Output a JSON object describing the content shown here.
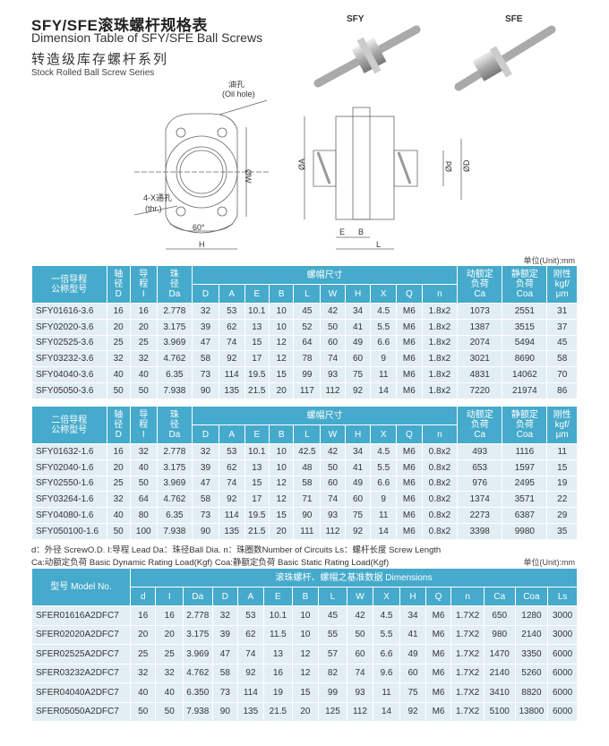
{
  "title_cn": "SFY/SFE滚珠螺杆规格表",
  "title_en": "Dimension Table of SFY/SFE Ball Screws",
  "subtitle_cn": "转造级库存螺杆系列",
  "subtitle_en": "Stock Rolled Ball Screw Series",
  "products": {
    "sfy": "SFY",
    "sfe": "SFE"
  },
  "drawing": {
    "oil_hole_cn": "油孔",
    "oil_hole_en": "(Oil hole)",
    "thr_cn": "4-X通孔",
    "thr_en": "(thr.)",
    "angle": "60°",
    "H": "H",
    "W": "ØW",
    "A": "ØA",
    "d": "Ød",
    "D": "ØD",
    "E": "E",
    "B": "B",
    "L": "L"
  },
  "unit": "单位(Unit):mm",
  "table1": {
    "group": "螺帽尺寸",
    "head_model": "一倍导程\n公称型号",
    "head_shaft": "轴\n径\nD",
    "head_lead": "导\n程\nI",
    "head_ball": "珠\n径\nDa",
    "sub": [
      "D",
      "A",
      "E",
      "B",
      "L",
      "W",
      "H",
      "X",
      "Q",
      "n"
    ],
    "head_ca": "动额定\n负荷\nCa",
    "head_coa": "静额定\n负荷\nCoa",
    "head_rig": "刚性\nkgf/\nμm",
    "rows": [
      [
        "SFY01616-3.6",
        "16",
        "16",
        "2.778",
        "32",
        "53",
        "10.1",
        "10",
        "45",
        "42",
        "34",
        "4.5",
        "M6",
        "1.8x2",
        "1073",
        "2551",
        "31"
      ],
      [
        "SFY02020-3.6",
        "20",
        "20",
        "3.175",
        "39",
        "62",
        "13",
        "10",
        "52",
        "50",
        "41",
        "5.5",
        "M6",
        "1.8x2",
        "1387",
        "3515",
        "37"
      ],
      [
        "SFY02525-3.6",
        "25",
        "25",
        "3.969",
        "47",
        "74",
        "15",
        "12",
        "64",
        "60",
        "49",
        "6.6",
        "M6",
        "1.8x2",
        "2074",
        "5494",
        "45"
      ],
      [
        "SFY03232-3.6",
        "32",
        "32",
        "4.762",
        "58",
        "92",
        "17",
        "12",
        "78",
        "74",
        "60",
        "9",
        "M6",
        "1.8x2",
        "3021",
        "8690",
        "58"
      ],
      [
        "SFY04040-3.6",
        "40",
        "40",
        "6.35",
        "73",
        "114",
        "19.5",
        "15",
        "99",
        "93",
        "75",
        "11",
        "M6",
        "1.8x2",
        "4831",
        "14062",
        "70"
      ],
      [
        "SFY05050-3.6",
        "50",
        "50",
        "7.938",
        "90",
        "135",
        "21.5",
        "20",
        "117",
        "112",
        "92",
        "14",
        "M6",
        "1.8x2",
        "7220",
        "21974",
        "86"
      ]
    ]
  },
  "table2": {
    "group": "螺帽尺寸",
    "head_model": "二倍导程\n公称型号",
    "head_shaft": "轴\n径\nD",
    "head_lead": "导\n程\nI",
    "head_ball": "珠\n径\nDa",
    "sub": [
      "D",
      "A",
      "E",
      "B",
      "L",
      "W",
      "H",
      "X",
      "Q",
      "n"
    ],
    "head_ca": "动额定\n负荷\nCa",
    "head_coa": "静额定\n负荷\nCoa",
    "head_rig": "刚性\nkgf/\nμm",
    "rows": [
      [
        "SFY01632-1.6",
        "16",
        "32",
        "2.778",
        "32",
        "53",
        "10.1",
        "10",
        "42.5",
        "42",
        "34",
        "4.5",
        "M6",
        "0.8x2",
        "493",
        "1116",
        "11"
      ],
      [
        "SFY02040-1.6",
        "20",
        "40",
        "3.175",
        "39",
        "62",
        "13",
        "10",
        "48",
        "50",
        "41",
        "5.5",
        "M6",
        "0.8x2",
        "653",
        "1597",
        "15"
      ],
      [
        "SFY02550-1.6",
        "25",
        "50",
        "3.969",
        "47",
        "74",
        "15",
        "12",
        "58",
        "60",
        "49",
        "6.6",
        "M6",
        "0.8x2",
        "976",
        "2495",
        "19"
      ],
      [
        "SFY03264-1.6",
        "32",
        "64",
        "4.762",
        "58",
        "92",
        "17",
        "12",
        "71",
        "74",
        "60",
        "9",
        "M6",
        "0.8x2",
        "1374",
        "3571",
        "22"
      ],
      [
        "SFY04080-1.6",
        "40",
        "80",
        "6.35",
        "73",
        "114",
        "19.5",
        "15",
        "90",
        "93",
        "75",
        "11",
        "M6",
        "0.8x2",
        "2273",
        "6387",
        "29"
      ],
      [
        "SFY050100-1.6",
        "50",
        "100",
        "7.938",
        "90",
        "135",
        "21.5",
        "20",
        "111",
        "112",
        "92",
        "14",
        "M6",
        "0.8x2",
        "3398",
        "9980",
        "35"
      ]
    ]
  },
  "notes": {
    "line1": "d：外径 ScrewO.D.  I:导程  Lead  Da：珠径Ball Dia.    n：珠圈数Number of Circuits   Ls：螺杆长度 Screw Length",
    "line2": "Ca:动额定负荷  Basic Dynamic Rating Load(Kgf)   Coa:静额定负荷  Basic Static Rating Load(Kgf)",
    "unit": "单位(Unit):mm"
  },
  "table3": {
    "head_model": "型号 Model No.",
    "group": "滚珠螺杆、螺帽之基准数据 Dimensions",
    "sub": [
      "d",
      "I",
      "Da",
      "D",
      "A",
      "E",
      "B",
      "L",
      "W",
      "X",
      "H",
      "Q",
      "n",
      "Ca",
      "Coa",
      "Ls"
    ],
    "rows": [
      [
        "SFER01616A2DFC7",
        "16",
        "16",
        "2.778",
        "32",
        "53",
        "10.1",
        "10",
        "45",
        "42",
        "4.5",
        "34",
        "M6",
        "1.7X2",
        "650",
        "1280",
        "3000"
      ],
      [
        "SFER02020A2DFC7",
        "20",
        "20",
        "3.175",
        "39",
        "62",
        "11.5",
        "10",
        "55",
        "50",
        "5.5",
        "41",
        "M6",
        "1.7X2",
        "980",
        "2140",
        "3000"
      ],
      [
        "SFER02525A2DFC7",
        "25",
        "25",
        "3.969",
        "47",
        "74",
        "13",
        "12",
        "57",
        "60",
        "6.6",
        "49",
        "M6",
        "1.7X2",
        "1470",
        "3350",
        "6000"
      ],
      [
        "SFER03232A2DFC7",
        "32",
        "32",
        "4.762",
        "58",
        "92",
        "16",
        "12",
        "82",
        "74",
        "9.6",
        "60",
        "M6",
        "1.7X2",
        "2140",
        "5260",
        "6000"
      ],
      [
        "SFER04040A2DFC7",
        "40",
        "40",
        "6.350",
        "73",
        "114",
        "19",
        "15",
        "99",
        "93",
        "11",
        "75",
        "M6",
        "1.7X2",
        "3410",
        "8820",
        "6000"
      ],
      [
        "SFER05050A2DFC7",
        "50",
        "50",
        "7.938",
        "90",
        "135",
        "21.5",
        "20",
        "125",
        "112",
        "14",
        "92",
        "M6",
        "1.7X2",
        "5100",
        "13800",
        "6000"
      ]
    ]
  }
}
